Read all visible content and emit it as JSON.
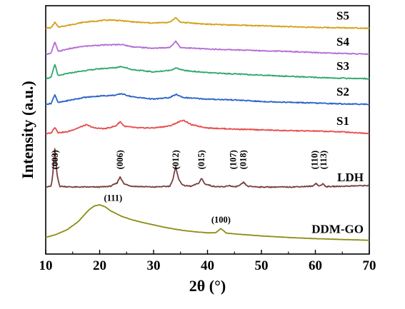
{
  "chart_data": {
    "type": "line",
    "title": "",
    "xlabel": "2θ (°)",
    "ylabel": "Intensity (a.u.)",
    "xlim": [
      10,
      70
    ],
    "xticks": [
      "10",
      "20",
      "30",
      "40",
      "50",
      "60",
      "70"
    ],
    "yticks": [],
    "grid": false,
    "legend": "none",
    "series": [
      {
        "name": "DDM-GO",
        "color": "#8c8c14",
        "offset": 0,
        "points": [
          [
            10,
            0.12
          ],
          [
            12,
            0.2
          ],
          [
            14,
            0.32
          ],
          [
            16,
            0.52
          ],
          [
            18,
            0.82
          ],
          [
            19,
            0.92
          ],
          [
            20,
            0.95
          ],
          [
            21,
            0.9
          ],
          [
            22,
            0.8
          ],
          [
            24,
            0.66
          ],
          [
            26,
            0.57
          ],
          [
            28,
            0.5
          ],
          [
            30,
            0.44
          ],
          [
            32,
            0.38
          ],
          [
            34,
            0.33
          ],
          [
            36,
            0.29
          ],
          [
            38,
            0.26
          ],
          [
            40,
            0.24
          ],
          [
            41.5,
            0.24
          ],
          [
            42.5,
            0.35
          ],
          [
            43.5,
            0.23
          ],
          [
            46,
            0.2
          ],
          [
            50,
            0.16
          ],
          [
            55,
            0.12
          ],
          [
            60,
            0.09
          ],
          [
            65,
            0.07
          ],
          [
            70,
            0.05
          ]
        ],
        "peaks": [
          {
            "label": "(111)",
            "x": 22.5,
            "y": 1.05
          },
          {
            "label": "(100)",
            "x": 42.5,
            "y": 0.5
          }
        ]
      },
      {
        "name": "LDH",
        "color": "#7a3f3f",
        "offset": 1.3,
        "points": [
          [
            10,
            0.1
          ],
          [
            11,
            0.12
          ],
          [
            11.3,
            0.4
          ],
          [
            11.7,
            1.1
          ],
          [
            12.1,
            0.4
          ],
          [
            12.6,
            0.12
          ],
          [
            15,
            0.1
          ],
          [
            20,
            0.1
          ],
          [
            22,
            0.12
          ],
          [
            23.2,
            0.2
          ],
          [
            23.8,
            0.36
          ],
          [
            24.5,
            0.18
          ],
          [
            26,
            0.12
          ],
          [
            30,
            0.1
          ],
          [
            33,
            0.12
          ],
          [
            33.6,
            0.3
          ],
          [
            34.1,
            0.62
          ],
          [
            34.7,
            0.28
          ],
          [
            35.5,
            0.14
          ],
          [
            37,
            0.12
          ],
          [
            38.4,
            0.2
          ],
          [
            38.9,
            0.32
          ],
          [
            39.5,
            0.18
          ],
          [
            41,
            0.12
          ],
          [
            43,
            0.1
          ],
          [
            44,
            0.14
          ],
          [
            45,
            0.1
          ],
          [
            46,
            0.14
          ],
          [
            46.7,
            0.22
          ],
          [
            47.4,
            0.12
          ],
          [
            50,
            0.1
          ],
          [
            55,
            0.1
          ],
          [
            59.5,
            0.12
          ],
          [
            60.1,
            0.2
          ],
          [
            60.7,
            0.12
          ],
          [
            61.4,
            0.18
          ],
          [
            62,
            0.11
          ],
          [
            65,
            0.12
          ],
          [
            70,
            0.14
          ]
        ],
        "peaks": [
          {
            "label": "(003)",
            "x": 11.7
          },
          {
            "label": "(006)",
            "x": 23.8
          },
          {
            "label": "(012)",
            "x": 34.1
          },
          {
            "label": "(015)",
            "x": 38.9
          },
          {
            "label": "(107)",
            "x": 44.8
          },
          {
            "label": "(018)",
            "x": 46.6
          },
          {
            "label": "(110)",
            "x": 59.9
          },
          {
            "label": "(113)",
            "x": 61.5
          }
        ]
      },
      {
        "name": "S1",
        "color": "#e84b4b",
        "offset": 2.7,
        "points": [
          [
            10,
            0.05
          ],
          [
            11,
            0.07
          ],
          [
            11.7,
            0.22
          ],
          [
            12.3,
            0.08
          ],
          [
            14,
            0.1
          ],
          [
            16,
            0.2
          ],
          [
            17.5,
            0.28
          ],
          [
            19,
            0.2
          ],
          [
            21,
            0.18
          ],
          [
            23,
            0.25
          ],
          [
            23.8,
            0.36
          ],
          [
            24.6,
            0.24
          ],
          [
            27,
            0.2
          ],
          [
            30,
            0.2
          ],
          [
            33,
            0.25
          ],
          [
            35.5,
            0.4
          ],
          [
            37,
            0.28
          ],
          [
            40,
            0.2
          ],
          [
            45,
            0.17
          ],
          [
            50,
            0.15
          ],
          [
            55,
            0.13
          ],
          [
            60,
            0.12
          ],
          [
            65,
            0.1
          ],
          [
            70,
            0.06
          ]
        ]
      },
      {
        "name": "S2",
        "color": "#2a62c9",
        "offset": 3.45,
        "points": [
          [
            10,
            0.05
          ],
          [
            11,
            0.07
          ],
          [
            11.7,
            0.3
          ],
          [
            12.3,
            0.09
          ],
          [
            14,
            0.14
          ],
          [
            17,
            0.22
          ],
          [
            20,
            0.26
          ],
          [
            23,
            0.28
          ],
          [
            24,
            0.32
          ],
          [
            26,
            0.24
          ],
          [
            30,
            0.18
          ],
          [
            33,
            0.22
          ],
          [
            34.2,
            0.3
          ],
          [
            35.5,
            0.22
          ],
          [
            40,
            0.18
          ],
          [
            45,
            0.16
          ],
          [
            50,
            0.12
          ],
          [
            55,
            0.1
          ],
          [
            60,
            0.08
          ],
          [
            65,
            0.06
          ],
          [
            70,
            0.05
          ]
        ]
      },
      {
        "name": "S3",
        "color": "#2fa86e",
        "offset": 4.1,
        "points": [
          [
            10,
            0.05
          ],
          [
            11,
            0.08
          ],
          [
            11.7,
            0.42
          ],
          [
            12.3,
            0.12
          ],
          [
            14,
            0.18
          ],
          [
            17,
            0.25
          ],
          [
            20,
            0.3
          ],
          [
            23,
            0.33
          ],
          [
            24,
            0.36
          ],
          [
            26,
            0.28
          ],
          [
            30,
            0.22
          ],
          [
            33,
            0.26
          ],
          [
            34.2,
            0.32
          ],
          [
            35.5,
            0.26
          ],
          [
            40,
            0.2
          ],
          [
            45,
            0.17
          ],
          [
            50,
            0.14
          ],
          [
            55,
            0.11
          ],
          [
            60,
            0.08
          ],
          [
            65,
            0.06
          ],
          [
            70,
            0.05
          ]
        ]
      },
      {
        "name": "S4",
        "color": "#b56bd6",
        "offset": 4.72,
        "points": [
          [
            10,
            0.05
          ],
          [
            11,
            0.08
          ],
          [
            11.7,
            0.36
          ],
          [
            12.3,
            0.12
          ],
          [
            14,
            0.18
          ],
          [
            17,
            0.25
          ],
          [
            20,
            0.28
          ],
          [
            23,
            0.29
          ],
          [
            24,
            0.3
          ],
          [
            26,
            0.24
          ],
          [
            30,
            0.2
          ],
          [
            33,
            0.22
          ],
          [
            34.1,
            0.38
          ],
          [
            35,
            0.22
          ],
          [
            40,
            0.18
          ],
          [
            45,
            0.16
          ],
          [
            50,
            0.14
          ],
          [
            55,
            0.12
          ],
          [
            60,
            0.09
          ],
          [
            65,
            0.07
          ],
          [
            70,
            0.05
          ]
        ]
      },
      {
        "name": "S5",
        "color": "#d4a017",
        "offset": 5.38,
        "points": [
          [
            10,
            0.05
          ],
          [
            11,
            0.06
          ],
          [
            11.7,
            0.2
          ],
          [
            12.3,
            0.08
          ],
          [
            14,
            0.12
          ],
          [
            17,
            0.2
          ],
          [
            20,
            0.24
          ],
          [
            22,
            0.26
          ],
          [
            24,
            0.24
          ],
          [
            27,
            0.2
          ],
          [
            30,
            0.18
          ],
          [
            33,
            0.2
          ],
          [
            34.1,
            0.32
          ],
          [
            35,
            0.2
          ],
          [
            40,
            0.15
          ],
          [
            45,
            0.13
          ],
          [
            50,
            0.11
          ],
          [
            55,
            0.09
          ],
          [
            60,
            0.07
          ],
          [
            65,
            0.06
          ],
          [
            70,
            0.05
          ]
        ]
      }
    ]
  }
}
